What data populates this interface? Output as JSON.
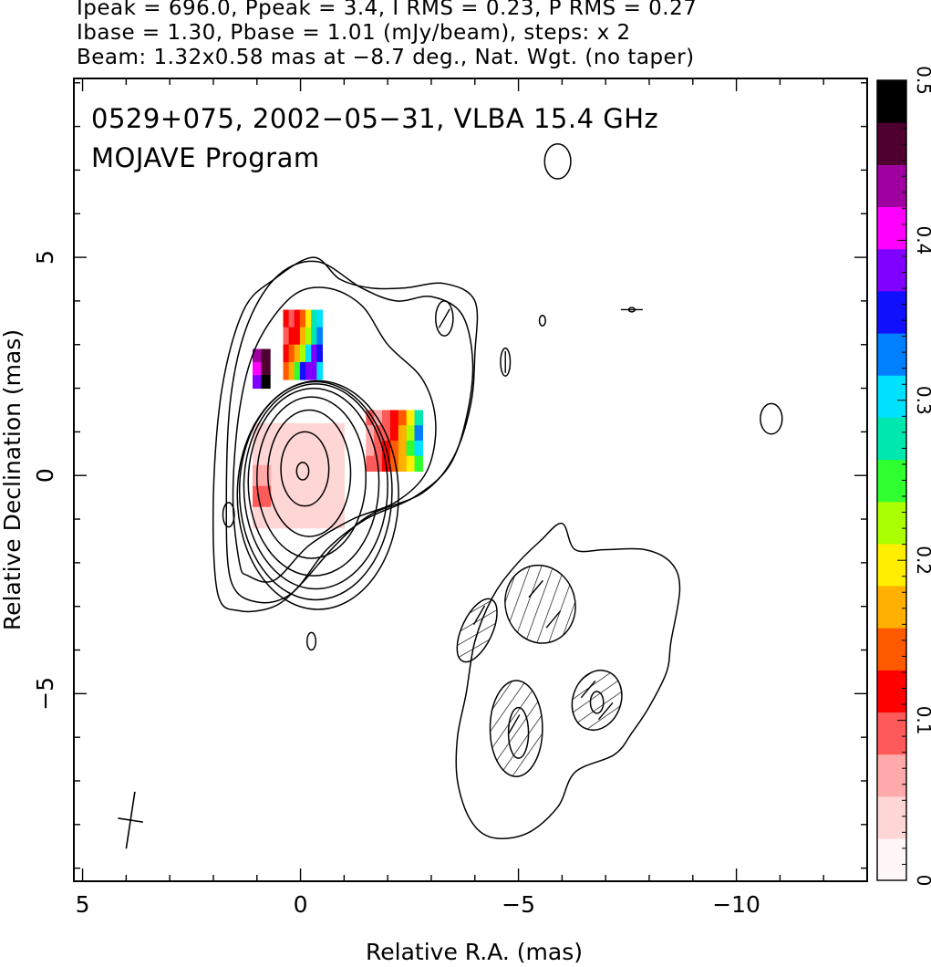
{
  "header": {
    "line1": "Ipeak = 696.0, Ppeak = 3.4, I RMS = 0.23, P RMS = 0.27",
    "line2": "Ibase = 1.30, Pbase = 1.01 (mJy/beam), steps: x 2",
    "line3": "Beam: 1.32x0.58 mas at −8.7 deg., Nat. Wgt. (no taper)"
  },
  "chart_data": {
    "type": "heatmap",
    "title_line1": "0529+075, 2002−05−31, VLBA 15.4 GHz",
    "title_line2": "MOJAVE Program",
    "xlabel": "Relative R.A. (mas)",
    "ylabel": "Relative Declination (mas)",
    "xlim": [
      5.2,
      -13
    ],
    "ylim": [
      -9.3,
      9.1
    ],
    "x_ticks": [
      5,
      0,
      -5,
      -10
    ],
    "x_tick_labels": [
      "5",
      "0",
      "−5",
      "−10"
    ],
    "y_ticks": [
      5,
      0,
      -5
    ],
    "y_tick_labels": [
      "5",
      "0",
      "−5"
    ],
    "colorbar": {
      "range": [
        0,
        0.5
      ],
      "ticks": [
        0,
        0.1,
        0.2,
        0.3,
        0.4,
        0.5
      ],
      "tick_labels": [
        "0",
        "0.1",
        "0.2",
        "0.3",
        "0.4",
        "0.5"
      ],
      "colors": [
        "#fff6f6",
        "#ffd6d6",
        "#ffaaaa",
        "#ff5a5a",
        "#ff0000",
        "#ff5a00",
        "#ffb000",
        "#ffee00",
        "#aaff00",
        "#30ff30",
        "#00e8b0",
        "#00e0ff",
        "#0080ff",
        "#1010ff",
        "#8000ff",
        "#ff00ff",
        "#a000a0",
        "#500030",
        "#000000"
      ]
    },
    "contour_base_mJy_per_beam": 1.3,
    "contour_step_factor": 2,
    "peak_intensity_mJy_per_beam": 696.0,
    "beam": {
      "major_mas": 1.32,
      "minor_mas": 0.58,
      "pa_deg": -8.7,
      "center": [
        3.9,
        -7.9
      ]
    },
    "contours_core": [
      {
        "center": [
          -0.05,
          0.1
        ],
        "rx": 0.14,
        "ry": 0.2
      },
      {
        "center": [
          -0.1,
          0.15
        ],
        "rx": 0.55,
        "ry": 0.85
      },
      {
        "center": [
          -0.2,
          0.05
        ],
        "rx": 0.95,
        "ry": 1.45
      },
      {
        "center": [
          -0.25,
          -0.05
        ],
        "rx": 1.25,
        "ry": 1.85
      },
      {
        "center": [
          -0.3,
          -0.15
        ],
        "rx": 1.5,
        "ry": 2.15
      },
      {
        "center": [
          -0.35,
          -0.25
        ],
        "rx": 1.65,
        "ry": 2.35
      },
      {
        "center": [
          -0.35,
          -0.35
        ],
        "rx": 1.75,
        "ry": 2.5
      },
      {
        "center": [
          -0.4,
          -0.45
        ],
        "rx": 1.85,
        "ry": 2.62
      }
    ],
    "contours_jet": [
      [
        [
          1.4,
          -2.0
        ],
        [
          1.55,
          -0.5
        ],
        [
          1.4,
          1.5
        ],
        [
          1.0,
          3.0
        ],
        [
          0.2,
          4.1
        ],
        [
          -0.6,
          4.3
        ],
        [
          -1.4,
          3.9
        ],
        [
          -2.0,
          3.0
        ],
        [
          -2.8,
          2.2
        ],
        [
          -3.1,
          1.2
        ],
        [
          -2.9,
          0.1
        ],
        [
          -2.2,
          -0.6
        ],
        [
          -1.2,
          -1.0
        ],
        [
          -0.2,
          -1.6
        ],
        [
          0.6,
          -2.4
        ],
        [
          1.2,
          -2.3
        ]
      ],
      [
        [
          1.6,
          -2.4
        ],
        [
          1.7,
          -0.5
        ],
        [
          1.6,
          1.8
        ],
        [
          1.2,
          3.5
        ],
        [
          0.5,
          4.6
        ],
        [
          -0.4,
          4.9
        ],
        [
          -1.4,
          4.3
        ],
        [
          -2.2,
          4.0
        ],
        [
          -3.0,
          4.1
        ],
        [
          -3.7,
          3.7
        ],
        [
          -3.95,
          2.6
        ],
        [
          -3.8,
          1.3
        ],
        [
          -3.4,
          0.2
        ],
        [
          -2.6,
          -0.5
        ],
        [
          -1.5,
          -1.0
        ],
        [
          -0.6,
          -1.7
        ],
        [
          0.2,
          -2.7
        ],
        [
          1.0,
          -2.9
        ]
      ],
      [
        [
          1.9,
          -2.7
        ],
        [
          2.0,
          -0.5
        ],
        [
          1.8,
          2.0
        ],
        [
          1.3,
          3.8
        ],
        [
          0.6,
          4.5
        ],
        [
          -0.3,
          5.0
        ],
        [
          -0.9,
          4.5
        ],
        [
          -1.6,
          4.3
        ],
        [
          -2.4,
          4.3
        ],
        [
          -3.3,
          4.4
        ],
        [
          -4.0,
          4.0
        ],
        [
          -4.0,
          2.8
        ],
        [
          -3.9,
          1.6
        ],
        [
          -3.5,
          0.4
        ],
        [
          -2.8,
          -0.4
        ],
        [
          -1.6,
          -0.9
        ],
        [
          -0.8,
          -1.6
        ],
        [
          0.0,
          -2.5
        ],
        [
          0.6,
          -3.0
        ],
        [
          1.4,
          -3.1
        ]
      ]
    ],
    "contours_south": [
      [
        [
          -4.0,
          -3.8
        ],
        [
          -4.4,
          -2.8
        ],
        [
          -4.9,
          -2.1
        ],
        [
          -5.5,
          -1.5
        ],
        [
          -6.0,
          -1.1
        ],
        [
          -6.3,
          -1.7
        ],
        [
          -7.0,
          -1.7
        ],
        [
          -7.9,
          -1.7
        ],
        [
          -8.5,
          -2.0
        ],
        [
          -8.7,
          -2.6
        ],
        [
          -8.5,
          -3.8
        ],
        [
          -8.4,
          -4.5
        ],
        [
          -8.0,
          -5.3
        ],
        [
          -7.6,
          -5.9
        ],
        [
          -7.2,
          -6.4
        ],
        [
          -6.3,
          -6.8
        ],
        [
          -5.9,
          -7.6
        ],
        [
          -5.2,
          -8.2
        ],
        [
          -4.4,
          -8.3
        ],
        [
          -3.9,
          -7.9
        ],
        [
          -3.6,
          -7.0
        ],
        [
          -3.6,
          -6.0
        ],
        [
          -3.8,
          -5.0
        ]
      ]
    ],
    "contours_small": [
      {
        "center": [
          -5.9,
          7.2
        ],
        "rx": 0.3,
        "ry": 0.4
      },
      {
        "center": [
          -3.3,
          3.6
        ],
        "rx": 0.2,
        "ry": 0.4
      },
      {
        "center": [
          -4.7,
          2.6
        ],
        "rx": 0.11,
        "ry": 0.32
      },
      {
        "center": [
          -5.55,
          3.55
        ],
        "rx": 0.07,
        "ry": 0.12
      },
      {
        "center": [
          -7.6,
          3.8
        ],
        "rx": 0.07,
        "ry": 0.05
      },
      {
        "center": [
          -10.8,
          1.3
        ],
        "rx": 0.25,
        "ry": 0.35
      },
      {
        "center": [
          1.65,
          -0.9
        ],
        "rx": 0.13,
        "ry": 0.28
      },
      {
        "center": [
          -0.25,
          -3.8
        ],
        "rx": 0.1,
        "ry": 0.2
      }
    ],
    "contours_negative": [
      {
        "center": [
          -4.05,
          -3.55
        ],
        "rx": 0.35,
        "ry": 0.78,
        "angle": 25
      },
      {
        "center": [
          -5.5,
          -2.95
        ],
        "rx": 0.8,
        "ry": 0.9,
        "angle": -15
      },
      {
        "center": [
          -4.95,
          -5.8
        ],
        "rx": 0.6,
        "ry": 1.1,
        "angle": 0
      },
      {
        "center": [
          -6.8,
          -5.15
        ],
        "rx": 0.55,
        "ry": 0.7,
        "angle": 20
      }
    ],
    "contours_inner_small": [
      {
        "center": [
          -5.0,
          -5.9
        ],
        "rx": 0.23,
        "ry": 0.58
      },
      {
        "center": [
          -6.8,
          -5.2
        ],
        "rx": 0.15,
        "ry": 0.25
      }
    ],
    "polarization_patches": [
      {
        "x": [
          0.4,
          -0.5
        ],
        "y": [
          2.2,
          3.8
        ],
        "values": [
          [
            0.1,
            0.08,
            0.12,
            0.15,
            0.2,
            0.28,
            0.3
          ],
          [
            0.09,
            0.1,
            0.12,
            0.17,
            0.22,
            0.27,
            0.33
          ],
          [
            0.12,
            0.14,
            0.16,
            0.22,
            0.3,
            0.38,
            0.36
          ],
          [
            0.15,
            0.18,
            0.25,
            0.35,
            0.4,
            0.38,
            0.3
          ]
        ]
      },
      {
        "x": [
          -1.5,
          -2.8
        ],
        "y": [
          0.1,
          1.5
        ],
        "values": [
          [
            0.07,
            0.06,
            0.08,
            0.1,
            0.14,
            0.2,
            0.28
          ],
          [
            0.06,
            0.07,
            0.09,
            0.12,
            0.16,
            0.22,
            0.32
          ],
          [
            0.06,
            0.08,
            0.1,
            0.13,
            0.17,
            0.24,
            0.3
          ],
          [
            0.07,
            0.08,
            0.11,
            0.14,
            0.18,
            0.2,
            0.25
          ]
        ]
      },
      {
        "x": [
          1.1,
          -1.0
        ],
        "y": [
          -1.2,
          1.2
        ],
        "values": [
          [
            0.03,
            0.03,
            0.02,
            0.02,
            0.02
          ],
          [
            0.04,
            0.03,
            0.02,
            0.02,
            0.03
          ],
          [
            0.05,
            0.03,
            0.02,
            0.02,
            0.04
          ],
          [
            0.08,
            0.03,
            0.02,
            0.02,
            0.03
          ],
          [
            0.03,
            0.02,
            0.02,
            0.02,
            0.02
          ]
        ]
      },
      {
        "x": [
          1.1,
          0.7
        ],
        "y": [
          2.0,
          2.9
        ],
        "values": [
          [
            0.45,
            0.48
          ],
          [
            0.42,
            0.47
          ],
          [
            0.4,
            0.5
          ]
        ]
      }
    ],
    "evpa_vectors": [
      {
        "x": -3.3,
        "y": 3.6,
        "angle": 30
      },
      {
        "x": -4.7,
        "y": 2.6,
        "angle": 0
      },
      {
        "x": -7.6,
        "y": 3.8,
        "angle": 90
      },
      {
        "x": -4.1,
        "y": -3.2,
        "angle": 30
      },
      {
        "x": -5.4,
        "y": -2.6,
        "angle": 40
      },
      {
        "x": -5.8,
        "y": -3.3,
        "angle": 40
      },
      {
        "x": -4.9,
        "y": -5.7,
        "angle": 30
      },
      {
        "x": -6.6,
        "y": -4.9,
        "angle": 40
      },
      {
        "x": -7.0,
        "y": -5.4,
        "angle": 40
      }
    ]
  }
}
